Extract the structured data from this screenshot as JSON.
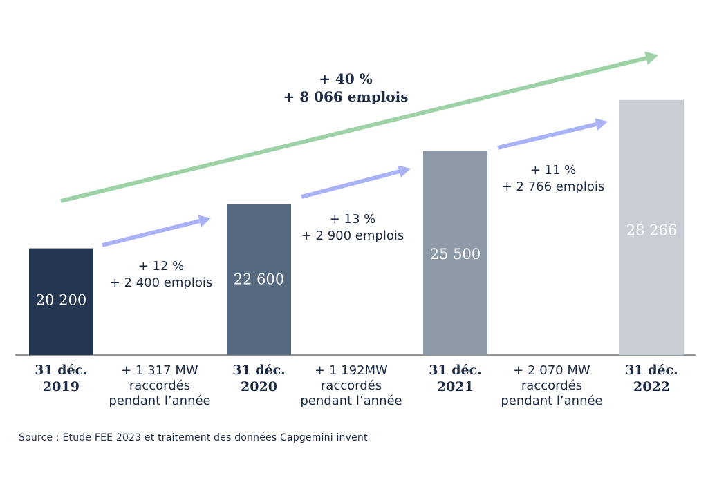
{
  "chart_data": {
    "type": "bar",
    "categories": [
      [
        "31 déc.",
        "2019"
      ],
      [
        "31 déc.",
        "2020"
      ],
      [
        "31 déc.",
        "2021"
      ],
      [
        "31 déc.",
        "2022"
      ]
    ],
    "values": [
      20200,
      22600,
      25500,
      28266
    ],
    "value_labels": [
      "20 200",
      "22 600",
      "25 500",
      "28 266"
    ],
    "bar_colors": [
      "#243650",
      "#576a80",
      "#8d9aa8",
      "#c9ced5"
    ],
    "value_label_colors": [
      "#ffffff",
      "#ffffff",
      "#ffffff",
      "#ffffff"
    ],
    "intervals": [
      {
        "growth": [
          "+ 12 %",
          "+ 2 400 emplois"
        ],
        "capacity": [
          "+  1 317 MW",
          "raccordés",
          "pendant l’année"
        ]
      },
      {
        "growth": [
          "+ 13 %",
          "+ 2 900 emplois"
        ],
        "capacity": [
          "+ 1 192MW",
          "raccordés",
          "pendant l’année"
        ]
      },
      {
        "growth": [
          "+ 11 %",
          "+ 2 766 emplois"
        ],
        "capacity": [
          "+ 2 070 MW",
          "raccordés",
          "pendant l’année"
        ]
      }
    ],
    "overall": [
      "+ 40 %",
      "+ 8 066 emplois"
    ],
    "colors": {
      "interval_arrow": "#a9b2f7",
      "overall_arrow": "#9dd2a7",
      "text": "#1c2a44",
      "axis": "#555555"
    },
    "grid": false,
    "legend": "none",
    "title": "",
    "xlabel": "",
    "ylabel": ""
  },
  "source": "Source : Étude FEE 2023 et traitement des données Capgemini invent"
}
